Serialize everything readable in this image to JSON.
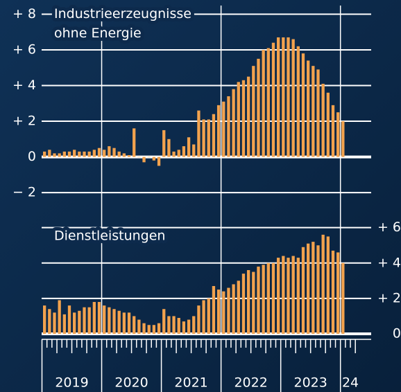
{
  "x_axis": {
    "labels": [
      "2019",
      "2020",
      "2021",
      "2022",
      "2023",
      "24"
    ]
  },
  "chart_data": [
    {
      "type": "bar",
      "title": "Industrieerzeugnisse ohne Energie",
      "color": "#f2a24e",
      "values": [
        0.3,
        0.4,
        0.2,
        0.2,
        0.3,
        0.3,
        0.4,
        0.3,
        0.3,
        0.3,
        0.4,
        0.5,
        0.4,
        0.6,
        0.5,
        0.3,
        0.2,
        0.1,
        1.6,
        0.0,
        -0.3,
        0.0,
        -0.2,
        -0.5,
        1.5,
        1.0,
        0.3,
        0.4,
        0.6,
        1.1,
        0.7,
        2.6,
        2.1,
        2.1,
        2.4,
        2.9,
        3.1,
        3.4,
        3.8,
        4.2,
        4.3,
        4.5,
        5.1,
        5.5,
        6.0,
        6.1,
        6.4,
        6.7,
        6.7,
        6.7,
        6.6,
        6.2,
        5.8,
        5.4,
        5.1,
        4.9,
        4.1,
        3.6,
        2.9,
        2.5,
        2.0
      ],
      "ylim": [
        -2.85,
        8.6
      ],
      "yticks": [
        {
          "value": -2,
          "label": "− 2"
        },
        0,
        {
          "value": 2,
          "label": "+ 2"
        },
        {
          "value": 4,
          "label": "+ 4"
        },
        {
          "value": 6,
          "label": "+ 6"
        },
        {
          "value": 8,
          "label": "+ 8"
        }
      ],
      "grid": true
    },
    {
      "type": "bar",
      "title": "Dienstleistungen",
      "color": "#f2a24e",
      "values": [
        1.6,
        1.4,
        1.2,
        1.9,
        1.1,
        1.6,
        1.2,
        1.3,
        1.5,
        1.5,
        1.8,
        1.8,
        1.6,
        1.5,
        1.4,
        1.3,
        1.2,
        1.2,
        1.0,
        0.8,
        0.6,
        0.5,
        0.5,
        0.6,
        1.4,
        1.0,
        1.0,
        0.9,
        0.7,
        0.8,
        1.0,
        1.6,
        1.9,
        2.0,
        2.7,
        2.5,
        2.4,
        2.6,
        2.8,
        3.0,
        3.4,
        3.6,
        3.5,
        3.8,
        3.9,
        4.0,
        4.0,
        4.3,
        4.4,
        4.3,
        4.4,
        4.3,
        4.9,
        5.1,
        5.2,
        5.0,
        5.6,
        5.5,
        4.7,
        4.6,
        4.0
      ],
      "ylim": [
        0,
        6.3
      ],
      "yticks": [
        0,
        {
          "value": 2,
          "label": "+ 2"
        },
        {
          "value": 4,
          "label": "+ 4"
        },
        {
          "value": 6,
          "label": "+ 6"
        }
      ],
      "grid": true
    }
  ]
}
